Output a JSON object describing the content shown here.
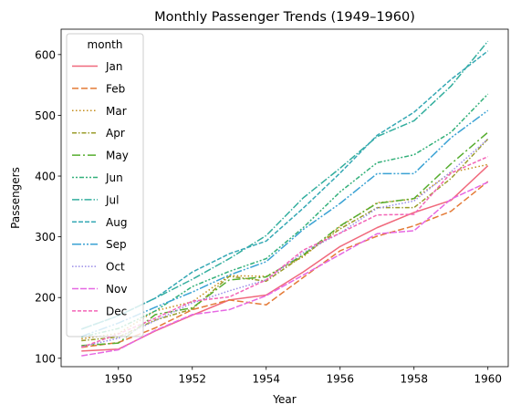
{
  "chart_data": {
    "type": "line",
    "title": "Monthly Passenger Trends (1949–1960)",
    "xlabel": "Year",
    "ylabel": "Passengers",
    "xlim": [
      1948.45,
      1960.55
    ],
    "ylim": [
      86.2,
      641.8
    ],
    "xticks": [
      1950,
      1952,
      1954,
      1956,
      1958,
      1960
    ],
    "yticks": [
      100,
      200,
      300,
      400,
      500,
      600
    ],
    "grid": false,
    "legend": {
      "title": "month",
      "placement": "top-left"
    },
    "x": [
      1949,
      1950,
      1951,
      1952,
      1953,
      1954,
      1955,
      1956,
      1957,
      1958,
      1959,
      1960
    ],
    "series": [
      {
        "name": "Jan",
        "color": "#f0697c",
        "dash": "",
        "values": [
          112,
          115,
          145,
          171,
          196,
          204,
          242,
          284,
          315,
          340,
          360,
          417
        ]
      },
      {
        "name": "Feb",
        "color": "#e47a36",
        "dash": "7,3",
        "values": [
          118,
          126,
          150,
          180,
          196,
          188,
          233,
          277,
          301,
          318,
          342,
          391
        ]
      },
      {
        "name": "Mar",
        "color": "#c48d1b",
        "dash": "1.5,2.5",
        "values": [
          132,
          141,
          178,
          193,
          236,
          235,
          267,
          317,
          356,
          362,
          406,
          419
        ]
      },
      {
        "name": "Apr",
        "color": "#9a9c2a",
        "dash": "5,2,1.5,2",
        "values": [
          129,
          135,
          163,
          181,
          235,
          227,
          269,
          313,
          348,
          348,
          396,
          461
        ]
      },
      {
        "name": "May",
        "color": "#56ad2f",
        "dash": "9,3,2,3",
        "values": [
          121,
          125,
          172,
          183,
          229,
          234,
          270,
          318,
          355,
          363,
          420,
          472
        ]
      },
      {
        "name": "Jun",
        "color": "#33b07a",
        "dash": "2,2,2,2,5,2",
        "values": [
          135,
          149,
          178,
          218,
          243,
          264,
          315,
          374,
          422,
          435,
          472,
          535
        ]
      },
      {
        "name": "Jul",
        "color": "#33ae9e",
        "dash": "8,2,1.5,2",
        "values": [
          148,
          170,
          199,
          230,
          264,
          302,
          364,
          413,
          465,
          491,
          548,
          622
        ]
      },
      {
        "name": "Aug",
        "color": "#35a8b4",
        "dash": "5,2",
        "values": [
          148,
          170,
          199,
          242,
          272,
          293,
          347,
          405,
          467,
          505,
          559,
          606
        ]
      },
      {
        "name": "Sep",
        "color": "#3aa2d4",
        "dash": "10,2,2,2,2,2",
        "values": [
          136,
          158,
          184,
          209,
          237,
          259,
          312,
          355,
          404,
          404,
          463,
          508
        ]
      },
      {
        "name": "Oct",
        "color": "#9a8de8",
        "dash": "1.5,2",
        "values": [
          119,
          133,
          162,
          191,
          211,
          229,
          274,
          306,
          347,
          359,
          407,
          461
        ]
      },
      {
        "name": "Nov",
        "color": "#e668e3",
        "dash": "7,2",
        "values": [
          104,
          114,
          146,
          172,
          180,
          203,
          237,
          271,
          305,
          310,
          362,
          390
        ]
      },
      {
        "name": "Dec",
        "color": "#f364b6",
        "dash": "4,2",
        "values": [
          118,
          140,
          166,
          194,
          201,
          229,
          278,
          306,
          336,
          337,
          405,
          432
        ]
      }
    ]
  }
}
